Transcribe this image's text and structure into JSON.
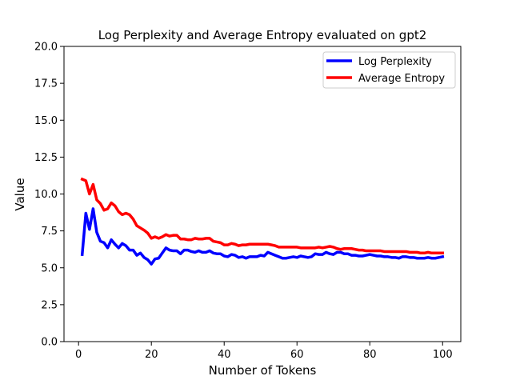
{
  "chart_data": {
    "type": "line",
    "title": "Log Perplexity and Average Entropy evaluated on gpt2",
    "xlabel": "Number of Tokens",
    "ylabel": "Value",
    "xlim": [
      -4,
      105
    ],
    "ylim": [
      0,
      20
    ],
    "xticks": [
      "0",
      "20",
      "40",
      "60",
      "80",
      "100"
    ],
    "yticks": [
      "0.0",
      "2.5",
      "5.0",
      "7.5",
      "10.0",
      "12.5",
      "15.0",
      "17.5",
      "20.0"
    ],
    "grid": false,
    "legend_position": "top-right",
    "x": [
      1,
      2,
      3,
      4,
      5,
      6,
      7,
      8,
      9,
      10,
      11,
      12,
      13,
      14,
      15,
      16,
      17,
      18,
      19,
      20,
      21,
      22,
      23,
      24,
      25,
      26,
      27,
      28,
      29,
      30,
      31,
      32,
      33,
      34,
      35,
      36,
      37,
      38,
      39,
      40,
      41,
      42,
      43,
      44,
      45,
      46,
      47,
      48,
      49,
      50,
      51,
      52,
      53,
      54,
      55,
      56,
      57,
      58,
      59,
      60,
      61,
      62,
      63,
      64,
      65,
      66,
      67,
      68,
      69,
      70,
      71,
      72,
      73,
      74,
      75,
      76,
      77,
      78,
      79,
      80,
      81,
      82,
      83,
      84,
      85,
      86,
      87,
      88,
      89,
      90,
      91,
      92,
      93,
      94,
      95,
      96,
      97,
      98,
      99,
      100
    ],
    "series": [
      {
        "name": "Log Perplexity",
        "color": "#0000ff",
        "values": [
          5.9,
          8.7,
          7.6,
          9.0,
          7.4,
          6.8,
          6.7,
          6.35,
          6.9,
          6.6,
          6.35,
          6.65,
          6.5,
          6.2,
          6.2,
          5.85,
          6.0,
          5.7,
          5.55,
          5.25,
          5.6,
          5.65,
          6.0,
          6.35,
          6.2,
          6.15,
          6.15,
          5.95,
          6.2,
          6.2,
          6.1,
          6.05,
          6.15,
          6.05,
          6.05,
          6.15,
          6.0,
          5.95,
          5.95,
          5.8,
          5.75,
          5.9,
          5.85,
          5.7,
          5.75,
          5.65,
          5.75,
          5.75,
          5.75,
          5.85,
          5.8,
          6.05,
          5.95,
          5.85,
          5.75,
          5.65,
          5.65,
          5.7,
          5.75,
          5.7,
          5.8,
          5.75,
          5.7,
          5.75,
          5.95,
          5.9,
          5.9,
          6.05,
          5.95,
          5.9,
          6.05,
          6.05,
          5.95,
          5.95,
          5.85,
          5.85,
          5.8,
          5.8,
          5.85,
          5.9,
          5.85,
          5.8,
          5.8,
          5.75,
          5.75,
          5.7,
          5.7,
          5.65,
          5.75,
          5.75,
          5.7,
          5.7,
          5.65,
          5.65,
          5.65,
          5.7,
          5.65,
          5.65,
          5.7,
          5.75
        ]
      },
      {
        "name": "Average Entropy",
        "color": "#ff0000",
        "values": [
          11.0,
          10.9,
          10.0,
          10.65,
          9.6,
          9.35,
          8.9,
          9.0,
          9.4,
          9.2,
          8.8,
          8.6,
          8.7,
          8.6,
          8.3,
          7.85,
          7.7,
          7.55,
          7.35,
          7.0,
          7.1,
          7.0,
          7.1,
          7.25,
          7.15,
          7.2,
          7.2,
          6.95,
          6.95,
          6.9,
          6.9,
          7.0,
          6.95,
          6.95,
          7.0,
          7.0,
          6.8,
          6.75,
          6.7,
          6.55,
          6.55,
          6.65,
          6.6,
          6.5,
          6.55,
          6.55,
          6.6,
          6.6,
          6.6,
          6.6,
          6.6,
          6.6,
          6.55,
          6.5,
          6.4,
          6.4,
          6.4,
          6.4,
          6.4,
          6.4,
          6.35,
          6.35,
          6.35,
          6.35,
          6.35,
          6.4,
          6.35,
          6.4,
          6.45,
          6.4,
          6.3,
          6.25,
          6.3,
          6.3,
          6.3,
          6.25,
          6.2,
          6.2,
          6.15,
          6.15,
          6.15,
          6.15,
          6.15,
          6.1,
          6.1,
          6.1,
          6.1,
          6.1,
          6.1,
          6.1,
          6.05,
          6.05,
          6.05,
          6.0,
          6.0,
          6.05,
          6.0,
          6.0,
          6.0,
          6.0
        ]
      }
    ]
  }
}
